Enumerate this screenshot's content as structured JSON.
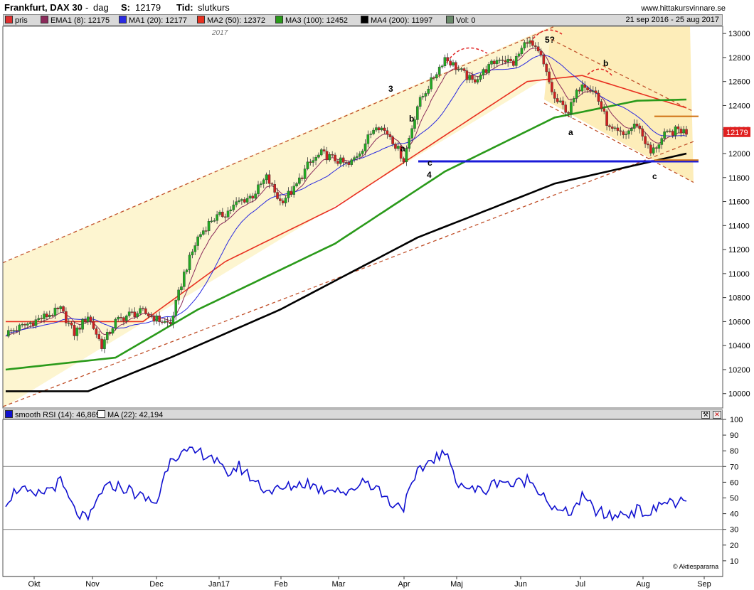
{
  "header": {
    "instrument": "Frankfurt, DAX 30",
    "period": "dag",
    "last_label": "S:",
    "last_value": "12179",
    "type_label": "Tid:",
    "type_value": "slutkurs",
    "site": "www.hittakursvinnare.se"
  },
  "legend": {
    "items": [
      {
        "label": "pris",
        "color": "#e03030"
      },
      {
        "label": "EMA1 (8): 12175",
        "color": "#8b2a5a"
      },
      {
        "label": "MA1 (20): 12177",
        "color": "#2a2ae0"
      },
      {
        "label": "MA2 (50): 12372",
        "color": "#e83020"
      },
      {
        "label": "MA3 (100): 12452",
        "color": "#2a9a1a"
      },
      {
        "label": "MA4 (200): 11997",
        "color": "#000000"
      },
      {
        "label": "Vol: 0",
        "color": "#6a8a6a"
      }
    ],
    "date_range": "21 sep 2016 - 25 aug 2017"
  },
  "rsi_legend": {
    "items": [
      {
        "label": "smooth RSI (14): 46,869",
        "color": "#1010d0"
      },
      {
        "label": "MA (22): 42,194",
        "color": "#ffffff"
      }
    ]
  },
  "chart_data": {
    "type": "line",
    "price_axis": {
      "ticks": [
        10000,
        10200,
        10400,
        10600,
        10800,
        11000,
        11200,
        11400,
        11600,
        11800,
        12000,
        12200,
        12400,
        12600,
        12800,
        13000
      ],
      "range": [
        9880,
        13060
      ],
      "last_price_label": "12179"
    },
    "rsi_axis": {
      "ticks": [
        10,
        20,
        30,
        40,
        50,
        60,
        70,
        80,
        90,
        100
      ],
      "range": [
        0,
        100
      ],
      "reference_lines": [
        30,
        70
      ]
    },
    "x_axis": {
      "labels": [
        "Okt",
        "Nov",
        "Dec",
        "Jan17",
        "Feb",
        "Mar",
        "Apr",
        "Maj",
        "Jun",
        "Jul",
        "Aug",
        "Sep"
      ],
      "year_marker": "2017"
    },
    "price_series_approx": [
      [
        0,
        10500
      ],
      [
        5,
        10550
      ],
      [
        10,
        10600
      ],
      [
        15,
        10650
      ],
      [
        20,
        10700
      ],
      [
        25,
        10500
      ],
      [
        30,
        10650
      ],
      [
        35,
        10400
      ],
      [
        40,
        10600
      ],
      [
        45,
        10660
      ],
      [
        50,
        10680
      ],
      [
        55,
        10620
      ],
      [
        60,
        10580
      ],
      [
        65,
        11000
      ],
      [
        70,
        11300
      ],
      [
        75,
        11450
      ],
      [
        80,
        11500
      ],
      [
        85,
        11600
      ],
      [
        90,
        11650
      ],
      [
        95,
        11800
      ],
      [
        100,
        11600
      ],
      [
        105,
        11700
      ],
      [
        110,
        11900
      ],
      [
        115,
        12000
      ],
      [
        120,
        11950
      ],
      [
        125,
        11900
      ],
      [
        130,
        12050
      ],
      [
        135,
        12250
      ],
      [
        140,
        12150
      ],
      [
        145,
        11950
      ],
      [
        150,
        12400
      ],
      [
        155,
        12600
      ],
      [
        160,
        12800
      ],
      [
        165,
        12700
      ],
      [
        170,
        12600
      ],
      [
        175,
        12700
      ],
      [
        180,
        12800
      ],
      [
        185,
        12750
      ],
      [
        190,
        12950
      ],
      [
        195,
        12800
      ],
      [
        200,
        12450
      ],
      [
        205,
        12350
      ],
      [
        210,
        12600
      ],
      [
        215,
        12500
      ],
      [
        220,
        12200
      ],
      [
        225,
        12150
      ],
      [
        230,
        12250
      ],
      [
        235,
        12000
      ],
      [
        240,
        12150
      ],
      [
        245,
        12200
      ],
      [
        248,
        12179
      ]
    ],
    "ma_series_approx": [
      {
        "name": "MA2 (50): 12372",
        "points": [
          [
            0,
            10600
          ],
          [
            50,
            10600
          ],
          [
            80,
            11100
          ],
          [
            120,
            11550
          ],
          [
            150,
            12000
          ],
          [
            190,
            12600
          ],
          [
            210,
            12650
          ],
          [
            248,
            12380
          ]
        ]
      },
      {
        "name": "MA3 (100): 12452",
        "points": [
          [
            0,
            10200
          ],
          [
            40,
            10300
          ],
          [
            70,
            10700
          ],
          [
            120,
            11250
          ],
          [
            160,
            11850
          ],
          [
            200,
            12300
          ],
          [
            230,
            12440
          ],
          [
            248,
            12450
          ]
        ]
      },
      {
        "name": "MA4 (200): 11997",
        "points": [
          [
            0,
            10020
          ],
          [
            30,
            10020
          ],
          [
            60,
            10300
          ],
          [
            100,
            10700
          ],
          [
            150,
            11300
          ],
          [
            200,
            11750
          ],
          [
            248,
            12000
          ]
        ]
      }
    ],
    "rsi_series_approx": [
      [
        0,
        48
      ],
      [
        5,
        57
      ],
      [
        10,
        50
      ],
      [
        15,
        55
      ],
      [
        20,
        60
      ],
      [
        25,
        42
      ],
      [
        30,
        35
      ],
      [
        35,
        55
      ],
      [
        40,
        58
      ],
      [
        45,
        55
      ],
      [
        50,
        50
      ],
      [
        55,
        47
      ],
      [
        60,
        77
      ],
      [
        65,
        78
      ],
      [
        70,
        79
      ],
      [
        75,
        77
      ],
      [
        80,
        65
      ],
      [
        85,
        70
      ],
      [
        90,
        62
      ],
      [
        95,
        55
      ],
      [
        100,
        55
      ],
      [
        105,
        58
      ],
      [
        110,
        60
      ],
      [
        115,
        55
      ],
      [
        120,
        57
      ],
      [
        125,
        52
      ],
      [
        130,
        62
      ],
      [
        135,
        57
      ],
      [
        140,
        47
      ],
      [
        145,
        45
      ],
      [
        150,
        65
      ],
      [
        155,
        75
      ],
      [
        160,
        78
      ],
      [
        165,
        60
      ],
      [
        170,
        55
      ],
      [
        175,
        55
      ],
      [
        180,
        62
      ],
      [
        185,
        58
      ],
      [
        190,
        62
      ],
      [
        195,
        55
      ],
      [
        200,
        42
      ],
      [
        205,
        40
      ],
      [
        210,
        50
      ],
      [
        215,
        42
      ],
      [
        220,
        38
      ],
      [
        225,
        40
      ],
      [
        230,
        42
      ],
      [
        235,
        40
      ],
      [
        240,
        48
      ],
      [
        245,
        47
      ],
      [
        248,
        47
      ]
    ],
    "annotations": [
      "3",
      "4",
      "5?",
      "a",
      "b",
      "c",
      "a",
      "b",
      "c"
    ]
  },
  "copyright": "© Aktiespararna"
}
